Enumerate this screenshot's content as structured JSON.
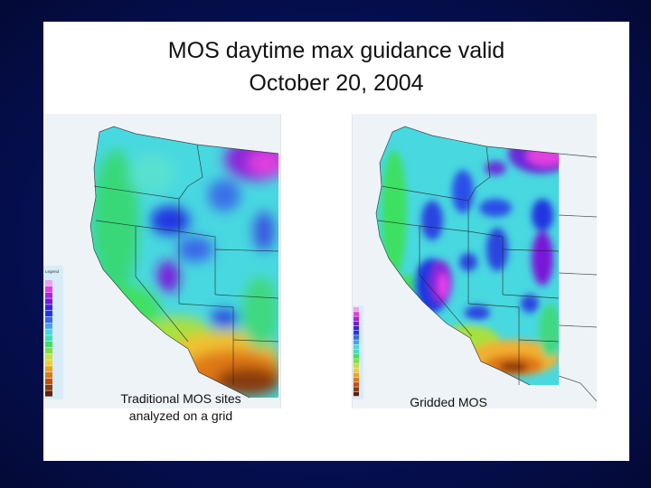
{
  "slide": {
    "title_line1": "MOS daytime max guidance valid",
    "title_line2": "October 20, 2004"
  },
  "maps": {
    "left": {
      "caption_line1": "Traditional MOS sites",
      "caption_line2": "analyzed on a grid",
      "legend_title": "Legend"
    },
    "right": {
      "caption_line1": "Gridded MOS"
    }
  },
  "colors": {
    "background": "#061056",
    "slide": "#ffffff",
    "purple": "#7a18d8",
    "blue": "#2436e0",
    "cyan": "#3fe0e8",
    "green": "#3ee060",
    "orange": "#e07818",
    "brown": "#8a3a10"
  }
}
